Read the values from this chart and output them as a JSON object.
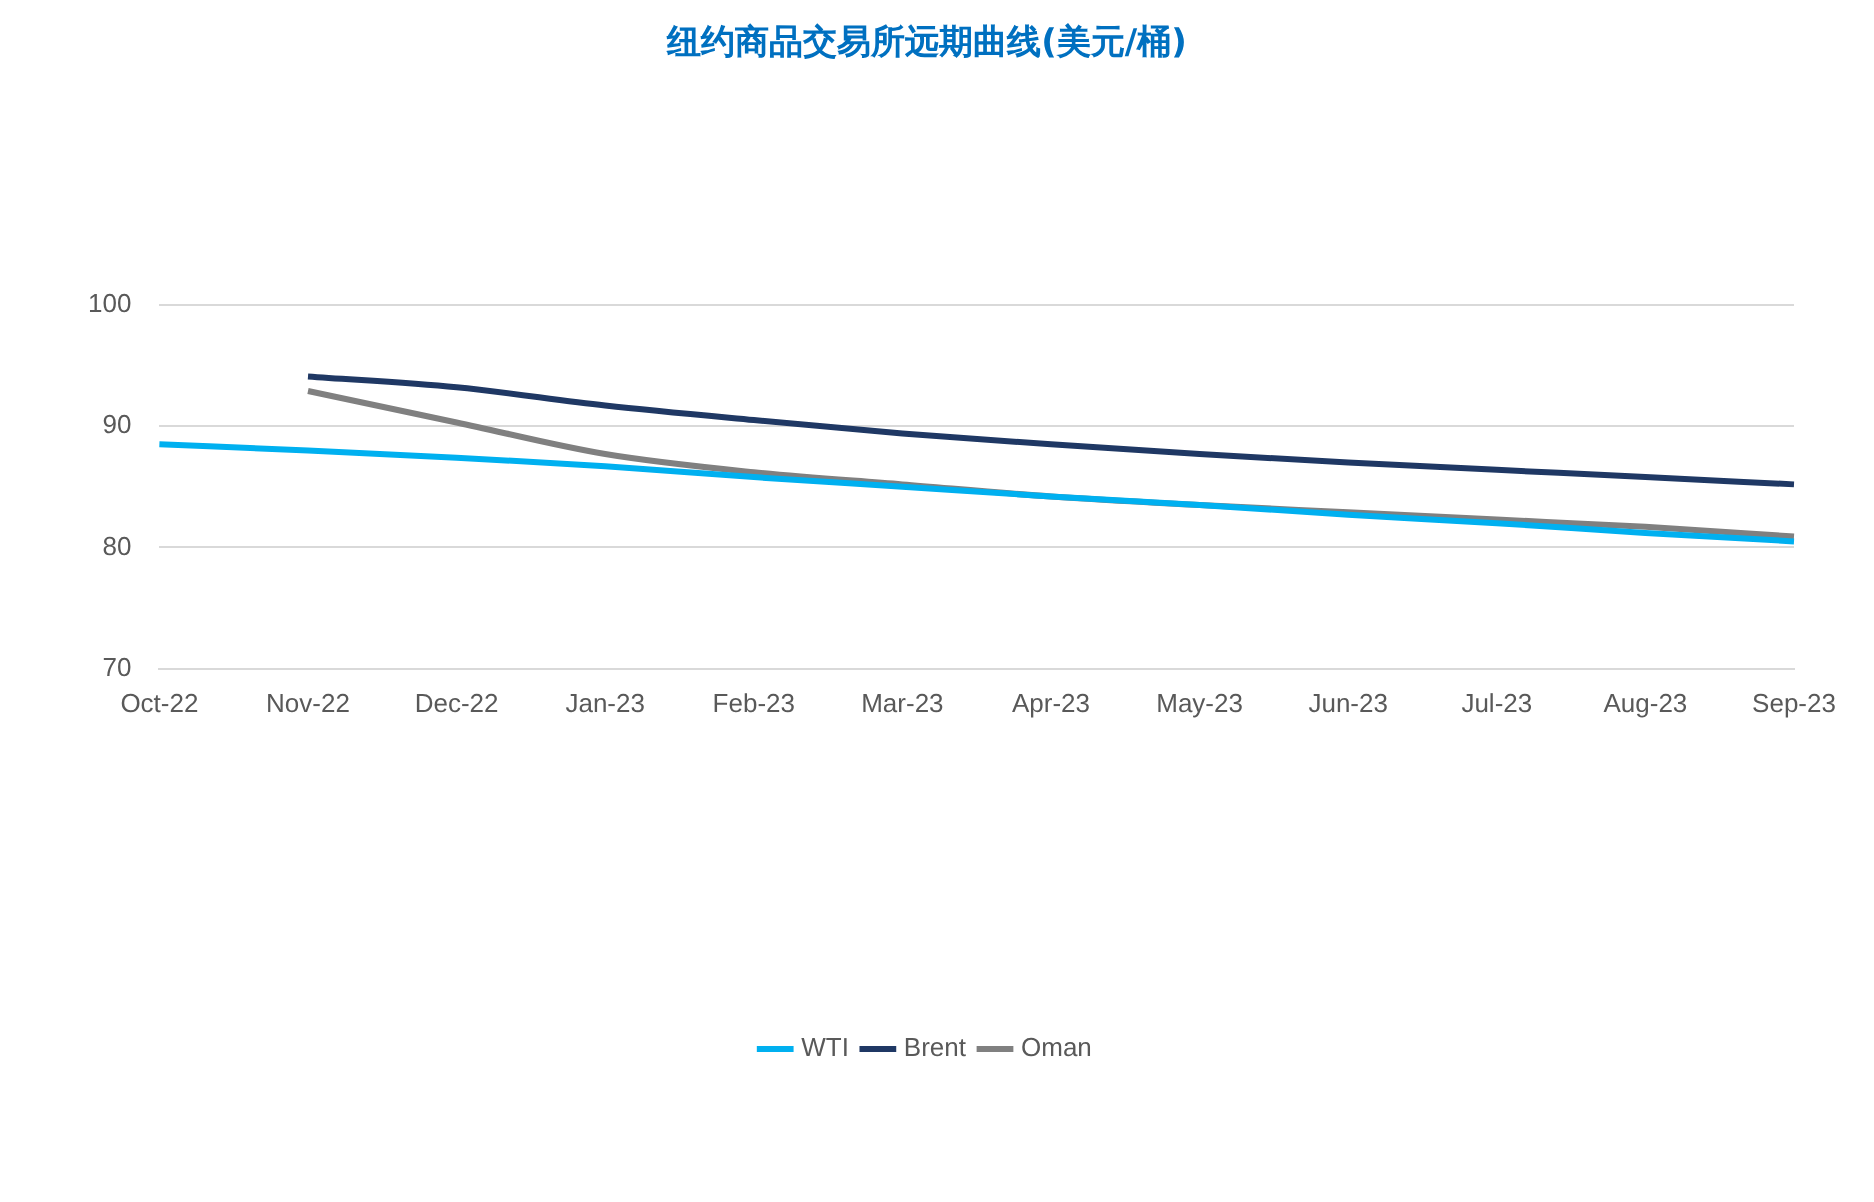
{
  "chart_data": {
    "type": "line",
    "title": "纽约商品交易所远期曲线(美元/桶)",
    "categories": [
      "Oct-22",
      "Nov-22",
      "Dec-22",
      "Jan-23",
      "Feb-23",
      "Mar-23",
      "Apr-23",
      "May-23",
      "Jun-23",
      "Jul-23",
      "Aug-23",
      "Sep-23"
    ],
    "series": [
      {
        "name": "WTI",
        "color": "#00b0f0",
        "values": [
          88.5,
          88.0,
          87.4,
          86.7,
          85.8,
          85.0,
          84.2,
          83.5,
          82.7,
          82.0,
          81.2,
          80.5
        ]
      },
      {
        "name": "Brent",
        "color": "#1f3864",
        "values": [
          null,
          94.1,
          93.2,
          91.7,
          90.5,
          89.4,
          88.5,
          87.7,
          87.0,
          86.4,
          85.8,
          85.2
        ]
      },
      {
        "name": "Oman",
        "color": "#808080",
        "values": [
          null,
          92.9,
          90.3,
          87.7,
          86.2,
          85.2,
          84.2,
          83.5,
          82.9,
          82.3,
          81.7,
          80.9
        ]
      }
    ],
    "ylim": [
      70,
      100
    ],
    "yticks": [
      70,
      80,
      90,
      100
    ],
    "grid": "y",
    "legend": "bottom",
    "marker": "none",
    "line_style": "solid"
  }
}
